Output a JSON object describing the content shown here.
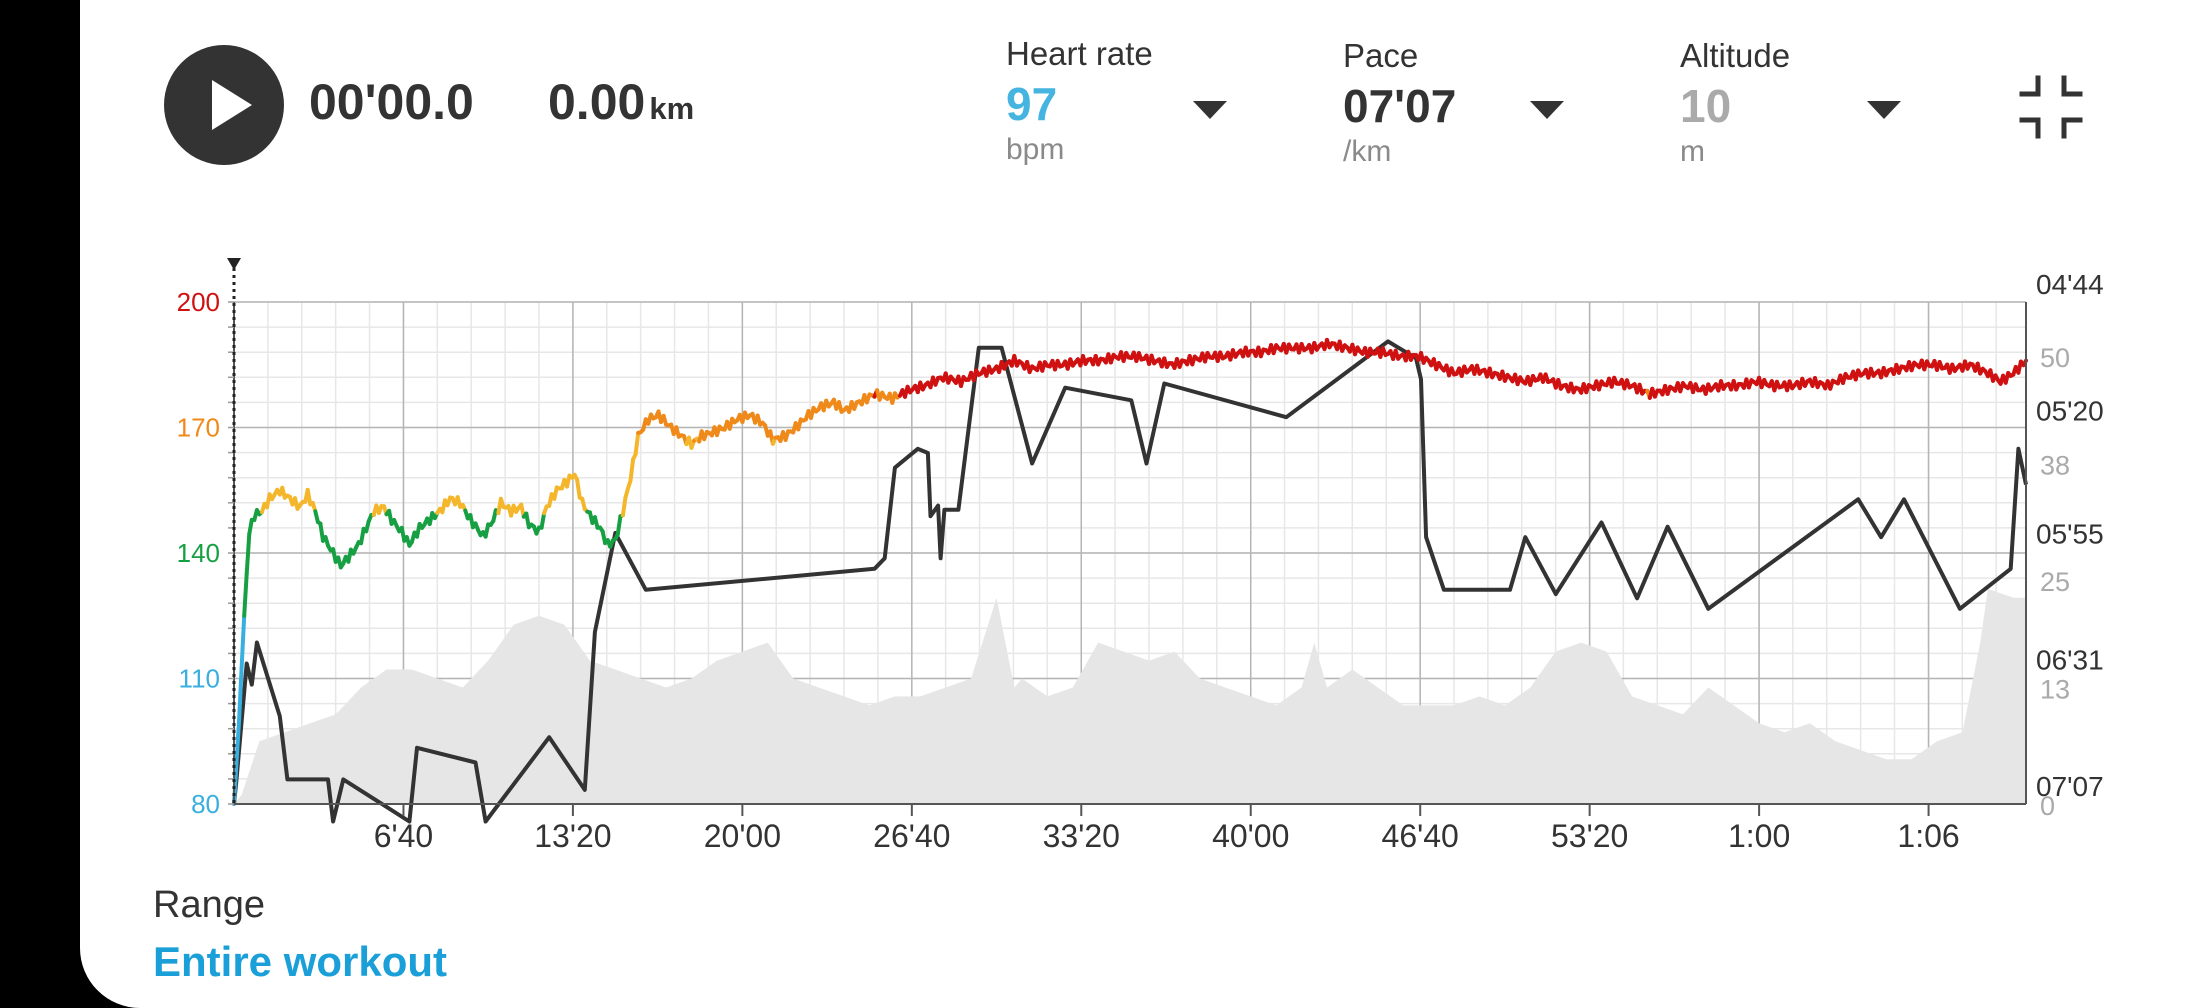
{
  "player": {
    "elapsed": "00'00.0",
    "distance": "0.00",
    "distance_unit": "km"
  },
  "metrics": [
    {
      "label": "Heart rate",
      "value": "97",
      "unit": "bpm",
      "color": "#46b4e0"
    },
    {
      "label": "Pace",
      "value": "07'07",
      "unit": "/km",
      "color": "#333333"
    },
    {
      "label": "Altitude",
      "value": "10",
      "unit": "m",
      "color": "#aaaaaa"
    }
  ],
  "range": {
    "label": "Range",
    "value": "Entire workout"
  },
  "chart_data": {
    "type": "line",
    "x_tick_labels": [
      "6'40",
      "13'20",
      "20'00",
      "26'40",
      "33'20",
      "40'00",
      "46'40",
      "53'20",
      "1:00",
      "1:06"
    ],
    "x_tick_minutes": [
      6.667,
      13.333,
      20,
      26.667,
      33.333,
      40,
      46.667,
      53.333,
      60,
      66.667
    ],
    "x_range_minutes": [
      0,
      70.5
    ],
    "left_axis": {
      "name": "Heart rate",
      "ticks": [
        80,
        110,
        140,
        170,
        200
      ],
      "range": [
        80,
        200
      ],
      "tick_colors": [
        "#39afe0",
        "#39afe0",
        "#17a043",
        "#ef8a1a",
        "#cf1111"
      ]
    },
    "right_axis_pace": {
      "name": "Pace",
      "ticks": [
        "04'44",
        "05'20",
        "05'55",
        "06'31",
        "07'07"
      ],
      "tick_minutes": [
        4.733,
        5.333,
        5.917,
        6.517,
        7.117
      ]
    },
    "right_axis_altitude": {
      "name": "Altitude",
      "ticks": [
        0,
        13,
        25,
        38,
        50
      ],
      "range": [
        0,
        56
      ]
    },
    "heart_rate": {
      "color_zones": [
        {
          "min": 0,
          "max": 120,
          "color": "#39afe0"
        },
        {
          "min": 120,
          "max": 150,
          "color": "#17a043"
        },
        {
          "min": 150,
          "max": 167,
          "color": "#f4b72c"
        },
        {
          "min": 167,
          "max": 178,
          "color": "#ef8a1a"
        },
        {
          "min": 178,
          "max": 999,
          "color": "#cf1111"
        }
      ],
      "points": [
        [
          0,
          80
        ],
        [
          0.2,
          100
        ],
        [
          0.4,
          125
        ],
        [
          0.6,
          145
        ],
        [
          0.8,
          149
        ],
        [
          1.1,
          150
        ],
        [
          1.4,
          153
        ],
        [
          1.8,
          155
        ],
        [
          2.2,
          153
        ],
        [
          2.6,
          151
        ],
        [
          2.9,
          154
        ],
        [
          3.2,
          150
        ],
        [
          3.5,
          144
        ],
        [
          3.9,
          140
        ],
        [
          4.2,
          137
        ],
        [
          4.5,
          139
        ],
        [
          4.9,
          142
        ],
        [
          5.2,
          146
        ],
        [
          5.5,
          150
        ],
        [
          5.9,
          151
        ],
        [
          6.2,
          148
        ],
        [
          6.6,
          145
        ],
        [
          6.9,
          142
        ],
        [
          7.3,
          146
        ],
        [
          7.7,
          148
        ],
        [
          8.1,
          150
        ],
        [
          8.5,
          153
        ],
        [
          8.9,
          152
        ],
        [
          9.3,
          148
        ],
        [
          9.8,
          144
        ],
        [
          10.2,
          148
        ],
        [
          10.5,
          152
        ],
        [
          10.9,
          150
        ],
        [
          11.3,
          151
        ],
        [
          11.6,
          147
        ],
        [
          12.0,
          145
        ],
        [
          12.3,
          151
        ],
        [
          12.7,
          155
        ],
        [
          13.1,
          157
        ],
        [
          13.4,
          159
        ],
        [
          13.7,
          152
        ],
        [
          14.0,
          149
        ],
        [
          14.4,
          146
        ],
        [
          14.7,
          142
        ],
        [
          15.0,
          143
        ],
        [
          15.3,
          150
        ],
        [
          15.6,
          158
        ],
        [
          15.9,
          168
        ],
        [
          16.3,
          172
        ],
        [
          16.7,
          173
        ],
        [
          17.2,
          170
        ],
        [
          17.6,
          168
        ],
        [
          18.0,
          166
        ],
        [
          18.4,
          168
        ],
        [
          18.9,
          169
        ],
        [
          19.3,
          170
        ],
        [
          19.8,
          172
        ],
        [
          20.3,
          173
        ],
        [
          20.8,
          171
        ],
        [
          21.2,
          167
        ],
        [
          21.7,
          168
        ],
        [
          22.1,
          170
        ],
        [
          22.6,
          173
        ],
        [
          23.1,
          175
        ],
        [
          23.6,
          176
        ],
        [
          24.0,
          174
        ],
        [
          24.6,
          176
        ],
        [
          25.2,
          178
        ],
        [
          25.9,
          177
        ],
        [
          26.6,
          179
        ],
        [
          27.2,
          180
        ],
        [
          27.9,
          182
        ],
        [
          28.6,
          181
        ],
        [
          29.3,
          183
        ],
        [
          30.0,
          184
        ],
        [
          30.7,
          186
        ],
        [
          31.4,
          184
        ],
        [
          32.0,
          185
        ],
        [
          32.7,
          185
        ],
        [
          33.4,
          186
        ],
        [
          34.1,
          186
        ],
        [
          34.8,
          187
        ],
        [
          35.5,
          187
        ],
        [
          36.2,
          186
        ],
        [
          36.9,
          185
        ],
        [
          37.6,
          186
        ],
        [
          38.3,
          187
        ],
        [
          39.0,
          187
        ],
        [
          39.7,
          188
        ],
        [
          40.4,
          188
        ],
        [
          41.0,
          189
        ],
        [
          41.7,
          189
        ],
        [
          42.4,
          189
        ],
        [
          43.1,
          190
        ],
        [
          43.8,
          189
        ],
        [
          44.5,
          188
        ],
        [
          45.2,
          188
        ],
        [
          45.9,
          187
        ],
        [
          46.6,
          187
        ],
        [
          47.3,
          185
        ],
        [
          48.0,
          183
        ],
        [
          48.7,
          184
        ],
        [
          49.4,
          183
        ],
        [
          50.1,
          182
        ],
        [
          50.8,
          181
        ],
        [
          51.5,
          182
        ],
        [
          52.2,
          180
        ],
        [
          52.9,
          179
        ],
        [
          53.6,
          180
        ],
        [
          54.3,
          181
        ],
        [
          55.0,
          180
        ],
        [
          55.7,
          178
        ],
        [
          56.4,
          179
        ],
        [
          57.1,
          180
        ],
        [
          57.8,
          179
        ],
        [
          58.5,
          180
        ],
        [
          59.2,
          180
        ],
        [
          59.9,
          181
        ],
        [
          60.6,
          180
        ],
        [
          61.3,
          180
        ],
        [
          62.0,
          181
        ],
        [
          62.7,
          180
        ],
        [
          63.4,
          182
        ],
        [
          64.1,
          183
        ],
        [
          64.8,
          183
        ],
        [
          65.5,
          184
        ],
        [
          66.2,
          185
        ],
        [
          66.9,
          185
        ],
        [
          67.6,
          184
        ],
        [
          68.3,
          185
        ],
        [
          69.0,
          183
        ],
        [
          69.5,
          181
        ],
        [
          70.0,
          183
        ],
        [
          70.5,
          186
        ]
      ]
    },
    "pace": {
      "color": "#333333",
      "points": [
        [
          0,
          7.117
        ],
        [
          0.1,
          7.0
        ],
        [
          0.5,
          6.45
        ],
        [
          0.7,
          6.55
        ],
        [
          0.9,
          6.35
        ],
        [
          1.8,
          6.7
        ],
        [
          2.1,
          7.0
        ],
        [
          3.7,
          7.0
        ],
        [
          3.9,
          7.2
        ],
        [
          4.3,
          7.0
        ],
        [
          6.9,
          7.2
        ],
        [
          7.2,
          6.85
        ],
        [
          9.5,
          6.92
        ],
        [
          9.9,
          7.2
        ],
        [
          12.4,
          6.8
        ],
        [
          13.8,
          7.05
        ],
        [
          14.2,
          6.3
        ],
        [
          15.0,
          5.83
        ],
        [
          16.2,
          6.1
        ],
        [
          25.2,
          6.0
        ],
        [
          25.6,
          5.95
        ],
        [
          26.0,
          5.52
        ],
        [
          26.9,
          5.43
        ],
        [
          27.3,
          5.45
        ],
        [
          27.4,
          5.75
        ],
        [
          27.7,
          5.7
        ],
        [
          27.8,
          5.95
        ],
        [
          27.95,
          5.72
        ],
        [
          28.5,
          5.72
        ],
        [
          29.3,
          4.95
        ],
        [
          30.2,
          4.95
        ],
        [
          31.4,
          5.5
        ],
        [
          32.7,
          5.14
        ],
        [
          35.3,
          5.2
        ],
        [
          35.9,
          5.5
        ],
        [
          36.6,
          5.12
        ],
        [
          41.4,
          5.28
        ],
        [
          45.4,
          4.92
        ],
        [
          46.5,
          5.0
        ],
        [
          46.7,
          5.1
        ],
        [
          46.9,
          5.85
        ],
        [
          47.6,
          6.1
        ],
        [
          50.2,
          6.1
        ],
        [
          50.8,
          5.85
        ],
        [
          52.0,
          6.12
        ],
        [
          53.8,
          5.78
        ],
        [
          55.2,
          6.14
        ],
        [
          56.4,
          5.8
        ],
        [
          58.0,
          6.19
        ],
        [
          63.9,
          5.67
        ],
        [
          64.8,
          5.85
        ],
        [
          65.7,
          5.67
        ],
        [
          67.9,
          6.19
        ],
        [
          69.9,
          6.0
        ],
        [
          70.2,
          5.43
        ],
        [
          70.5,
          5.6
        ]
      ]
    },
    "altitude": {
      "color": "#e6e6e6",
      "points": [
        [
          0,
          0
        ],
        [
          0.3,
          1
        ],
        [
          1,
          7
        ],
        [
          2,
          8
        ],
        [
          3,
          9
        ],
        [
          4,
          10
        ],
        [
          5,
          13
        ],
        [
          6,
          15
        ],
        [
          7,
          15
        ],
        [
          8,
          14
        ],
        [
          9,
          13
        ],
        [
          10,
          16
        ],
        [
          11,
          20
        ],
        [
          12,
          21
        ],
        [
          13,
          20
        ],
        [
          14,
          16
        ],
        [
          15,
          15
        ],
        [
          16,
          14
        ],
        [
          17,
          13
        ],
        [
          18,
          14
        ],
        [
          19,
          16
        ],
        [
          20,
          17
        ],
        [
          21,
          18
        ],
        [
          22,
          14
        ],
        [
          23,
          13
        ],
        [
          24,
          12
        ],
        [
          25,
          11
        ],
        [
          26,
          12
        ],
        [
          27,
          12
        ],
        [
          28,
          13
        ],
        [
          29,
          14
        ],
        [
          30,
          23
        ],
        [
          30.7,
          13
        ],
        [
          31,
          14
        ],
        [
          32,
          12
        ],
        [
          33,
          13
        ],
        [
          34,
          18
        ],
        [
          35,
          17
        ],
        [
          36,
          16
        ],
        [
          37,
          17
        ],
        [
          38,
          14
        ],
        [
          39,
          13
        ],
        [
          40,
          12
        ],
        [
          41,
          11
        ],
        [
          42,
          13
        ],
        [
          42.5,
          18
        ],
        [
          43,
          13
        ],
        [
          44,
          15
        ],
        [
          45,
          13
        ],
        [
          46,
          11
        ],
        [
          47,
          11
        ],
        [
          48,
          11
        ],
        [
          49,
          12
        ],
        [
          50,
          11
        ],
        [
          51,
          13
        ],
        [
          52,
          17
        ],
        [
          53,
          18
        ],
        [
          54,
          17
        ],
        [
          55,
          12
        ],
        [
          56,
          11
        ],
        [
          57,
          10
        ],
        [
          58,
          13
        ],
        [
          59,
          11
        ],
        [
          60,
          9
        ],
        [
          61,
          8
        ],
        [
          62,
          9
        ],
        [
          63,
          7
        ],
        [
          64,
          6
        ],
        [
          65,
          5
        ],
        [
          66,
          5
        ],
        [
          67,
          7
        ],
        [
          68,
          8
        ],
        [
          68.7,
          18
        ],
        [
          69,
          24
        ],
        [
          70,
          23
        ],
        [
          70.5,
          23
        ]
      ]
    }
  }
}
